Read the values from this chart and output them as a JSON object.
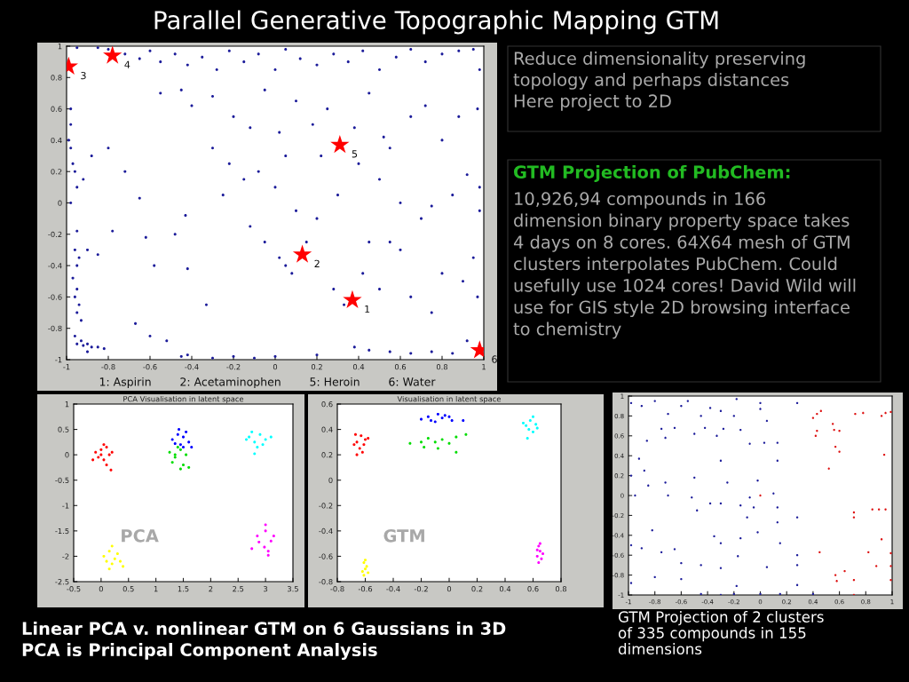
{
  "chart_data": [
    {
      "type": "other",
      "title": "Parallel Generative Topographic Mapping GTM",
      "annotations": [
        "Reduce dimensionality preserving\ntopology and perhaps distances\nHere project to 2D",
        "GTM Projection of PubChem:",
        "10,926,94 compounds in 166\ndimension binary property space takes\n4 days on 8 cores. 64X64 mesh of GTM\nclusters interpolates PubChem. Could\nusefully use 1024 cores! David Wild will\nuse for GIS style 2D browsing interface\nto chemistry",
        "Linear PCA v. nonlinear GTM on 6 Gaussians in 3D\nPCA is Principal Component Analysis",
        "GTM Projection of 2 clusters\nof 335 compounds in 155\ndimensions"
      ]
    },
    {
      "type": "scatter",
      "marker": "circle",
      "xlim": [
        -1,
        1
      ],
      "xticks": [
        -1,
        -0.8,
        -0.6,
        -0.4,
        -0.2,
        0,
        0.2,
        0.4,
        0.6,
        0.8,
        1
      ],
      "ylim": [
        -1,
        1
      ],
      "yticks": [
        -1,
        -0.8,
        -0.6,
        -0.4,
        -0.2,
        0,
        0.2,
        0.4,
        0.6,
        0.8,
        1
      ],
      "series": [
        {
          "color": "#1c1c9a",
          "x": [
            -0.95,
            -0.85,
            -0.8,
            -0.72,
            -0.65,
            -0.6,
            -0.55,
            -0.48,
            -0.42,
            -0.35,
            -0.28,
            -0.22,
            -0.15,
            -0.08,
            0.0,
            0.05,
            0.12,
            0.2,
            0.28,
            0.35,
            0.42,
            0.5,
            0.58,
            0.65,
            0.72,
            0.8,
            0.88,
            0.95,
            0.98,
            -0.55,
            -0.45,
            -0.4,
            -0.3,
            -0.2,
            -0.12,
            -0.05,
            0.02,
            0.1,
            0.18,
            0.25,
            0.38,
            0.45,
            0.52,
            0.65,
            0.72,
            0.8,
            0.88,
            0.97,
            -0.3,
            -0.22,
            -0.15,
            -0.25,
            -0.08,
            0.0,
            0.05,
            0.1,
            -0.12,
            -0.05,
            0.02,
            0.05,
            0.08,
            0.15,
            0.2,
            0.22,
            0.3,
            0.4,
            0.5,
            0.55,
            0.6,
            0.7,
            0.75,
            0.85,
            0.92,
            0.98,
            0.98,
            0.28,
            0.33,
            0.42,
            0.5,
            0.55,
            0.6,
            0.65,
            0.75,
            0.8,
            0.9,
            0.95,
            0.97,
            0.45,
            -0.6,
            -0.52,
            -0.45,
            -0.42,
            -0.3,
            -0.2,
            -0.1,
            0.0,
            0.2,
            0.38,
            0.45,
            0.55,
            0.65,
            0.75,
            0.85,
            0.92,
            -0.98,
            -0.98,
            -0.99,
            -0.98,
            -0.97,
            -0.96,
            -0.95,
            -0.98,
            -0.95,
            -0.96,
            -0.94,
            -0.95,
            -0.97,
            -0.95,
            -0.96,
            -0.94,
            -0.95,
            -0.93,
            -0.9,
            -0.92,
            -0.88,
            -0.95,
            -0.92,
            -0.9,
            -0.88,
            -0.93,
            -0.85,
            -0.82,
            -0.96,
            -0.9,
            -0.8,
            -0.72,
            -0.65,
            -0.78,
            -0.62,
            -0.85,
            -0.58,
            -0.43,
            -0.42,
            -0.48,
            -0.33,
            -0.67
          ],
          "values": [
            0.99,
            0.99,
            0.98,
            0.95,
            0.92,
            0.97,
            0.9,
            0.95,
            0.88,
            0.93,
            0.85,
            0.97,
            0.9,
            0.95,
            0.85,
            0.98,
            0.92,
            0.88,
            0.95,
            0.9,
            0.97,
            0.85,
            0.93,
            0.98,
            0.9,
            0.95,
            0.97,
            0.98,
            0.85,
            0.7,
            0.72,
            0.62,
            0.68,
            0.55,
            0.48,
            0.72,
            0.45,
            0.65,
            0.5,
            0.6,
            0.48,
            0.7,
            0.42,
            0.55,
            0.62,
            0.4,
            0.55,
            0.6,
            0.35,
            0.25,
            0.15,
            0.05,
            0.2,
            0.1,
            0.3,
            -0.05,
            -0.15,
            -0.25,
            -0.35,
            -0.4,
            -0.45,
            -0.25,
            -0.1,
            0.3,
            0.05,
            0.25,
            0.15,
            0.35,
            0.0,
            -0.1,
            -0.02,
            0.05,
            0.18,
            0.1,
            -0.05,
            -0.55,
            -0.65,
            -0.45,
            -0.55,
            -0.25,
            -0.3,
            -0.6,
            -0.7,
            -0.45,
            -0.5,
            -0.35,
            -0.6,
            -0.25,
            -0.85,
            -0.88,
            -0.98,
            -0.97,
            -0.99,
            -0.98,
            -0.99,
            -0.98,
            -0.97,
            -0.92,
            -0.94,
            -0.95,
            -0.96,
            -0.95,
            -0.96,
            -0.88,
            0.6,
            0.5,
            0.4,
            0.35,
            0.25,
            0.2,
            0.1,
            0.0,
            -0.18,
            -0.3,
            -0.35,
            -0.4,
            -0.48,
            -0.55,
            -0.6,
            -0.65,
            -0.7,
            -0.75,
            -0.3,
            0.15,
            0.3,
            -0.9,
            -0.91,
            -0.9,
            -0.92,
            -0.88,
            -0.92,
            -0.93,
            -0.85,
            -0.95,
            0.35,
            0.2,
            0.03,
            -0.18,
            -0.22,
            -0.33,
            -0.4,
            -0.08,
            -0.42,
            -0.2,
            -0.65,
            -0.77
          ]
        },
        {
          "color": "#ff0000",
          "marker": "star",
          "x": [
            0.37,
            0.13,
            -0.99,
            -0.78,
            0.31,
            0.98
          ],
          "values": [
            -0.62,
            -0.33,
            0.87,
            0.94,
            0.37,
            -0.94
          ]
        }
      ],
      "annotations": [
        "1",
        "2",
        "3",
        "4",
        "5",
        "6",
        "1: Aspirin        2: Acetaminophen        5: Heroin        6: Water"
      ]
    },
    {
      "type": "scatter",
      "marker": "circle",
      "title": "PCA Visualisation in latent space",
      "xlim": [
        -0.5,
        3.5
      ],
      "xticks": [
        -0.5,
        0,
        0.5,
        1,
        1.5,
        2,
        2.5,
        3,
        3.5
      ],
      "ylim": [
        -2.5,
        1
      ],
      "yticks": [
        -2.5,
        -2,
        -1.5,
        -1,
        -0.5,
        0,
        0.5,
        1
      ],
      "annotations": [
        "PCA"
      ],
      "series": [
        {
          "color": "#ff0000",
          "x": [
            -0.1,
            0,
            0.1,
            0.15,
            0.05,
            -0.05,
            0.2,
            0.0,
            0.1,
            -0.15,
            0.05,
            0.18
          ],
          "values": [
            0.05,
            0.1,
            0.15,
            0,
            -0.1,
            -0.05,
            0.05,
            0.0,
            -0.2,
            -0.1,
            0.2,
            -0.3
          ]
        },
        {
          "color": "#0000ff",
          "x": [
            1.3,
            1.4,
            1.5,
            1.6,
            1.45,
            1.35,
            1.55,
            1.42,
            1.5,
            1.65
          ],
          "values": [
            0.3,
            0.4,
            0.35,
            0.25,
            0.2,
            0.22,
            0.45,
            0.5,
            0.15,
            0.15
          ]
        },
        {
          "color": "#00dd00",
          "x": [
            1.25,
            1.35,
            1.45,
            1.55,
            1.4,
            1.3,
            1.5,
            1.6,
            1.35,
            1.45
          ],
          "values": [
            0.05,
            -0.05,
            0.1,
            0.0,
            0.15,
            -0.15,
            -0.2,
            -0.25,
            0.0,
            -0.28
          ]
        },
        {
          "color": "#00ffff",
          "x": [
            2.7,
            2.8,
            2.9,
            3.0,
            2.85,
            2.75,
            2.95,
            2.8,
            3.1,
            2.65
          ],
          "values": [
            0.35,
            0.25,
            0.4,
            0.3,
            0.15,
            0.45,
            0.2,
            0.02,
            0.35,
            0.3
          ]
        },
        {
          "color": "#ff00ff",
          "x": [
            2.85,
            3.0,
            3.1,
            2.98,
            3.05,
            2.88,
            3.15,
            2.75,
            3.0,
            3.05
          ],
          "values": [
            -1.6,
            -1.5,
            -1.7,
            -1.82,
            -1.9,
            -1.72,
            -1.6,
            -1.85,
            -1.38,
            -1.98
          ]
        },
        {
          "color": "#ffff00",
          "x": [
            0.05,
            0.15,
            0.25,
            0.3,
            0.2,
            0.1,
            0.35,
            0.2,
            0.4,
            0.15
          ],
          "values": [
            -2.0,
            -1.9,
            -2.05,
            -1.95,
            -2.15,
            -2.1,
            -2.1,
            -1.8,
            -2.2,
            -2.25
          ]
        }
      ]
    },
    {
      "type": "scatter",
      "marker": "circle",
      "title": "Visualisation in latent space",
      "xlim": [
        -0.8,
        0.8
      ],
      "xticks": [
        -0.8,
        -0.6,
        -0.4,
        -0.2,
        0,
        0.2,
        0.4,
        0.6,
        0.8
      ],
      "ylim": [
        -0.8,
        0.6
      ],
      "yticks": [
        -0.8,
        -0.6,
        -0.4,
        -0.2,
        0,
        0.2,
        0.4,
        0.6
      ],
      "annotations": [
        "GTM"
      ],
      "series": [
        {
          "color": "#ff0000",
          "x": [
            -0.66,
            -0.63,
            -0.6,
            -0.68,
            -0.64,
            -0.61,
            -0.67,
            -0.62,
            -0.58,
            -0.66
          ],
          "values": [
            0.3,
            0.35,
            0.32,
            0.28,
            0.25,
            0.28,
            0.36,
            0.22,
            0.33,
            0.2
          ]
        },
        {
          "color": "#0000ff",
          "x": [
            -0.2,
            -0.15,
            -0.1,
            -0.05,
            0.0,
            -0.08,
            0.02,
            -0.13,
            0.1,
            -0.03
          ],
          "values": [
            0.48,
            0.5,
            0.46,
            0.49,
            0.5,
            0.52,
            0.47,
            0.47,
            0.47,
            0.51
          ]
        },
        {
          "color": "#00dd00",
          "x": [
            -0.28,
            -0.2,
            -0.15,
            -0.1,
            -0.05,
            0.0,
            0.05,
            0.12,
            -0.08,
            0.05,
            -0.18
          ],
          "values": [
            0.29,
            0.3,
            0.33,
            0.3,
            0.32,
            0.29,
            0.34,
            0.36,
            0.25,
            0.22,
            0.26
          ]
        },
        {
          "color": "#00ffff",
          "x": [
            0.55,
            0.58,
            0.62,
            0.57,
            0.6,
            0.53,
            0.6,
            0.56,
            0.63
          ],
          "values": [
            0.43,
            0.47,
            0.44,
            0.4,
            0.38,
            0.45,
            0.5,
            0.33,
            0.41
          ]
        },
        {
          "color": "#ffff00",
          "x": [
            -0.61,
            -0.6,
            -0.59,
            -0.62,
            -0.6,
            -0.58,
            -0.61
          ],
          "values": [
            -0.65,
            -0.7,
            -0.68,
            -0.72,
            -0.63,
            -0.73,
            -0.75
          ]
        },
        {
          "color": "#ff00ff",
          "x": [
            0.64,
            0.65,
            0.63,
            0.66,
            0.64,
            0.65,
            0.67,
            0.63
          ],
          "values": [
            -0.52,
            -0.56,
            -0.6,
            -0.62,
            -0.65,
            -0.5,
            -0.58,
            -0.55
          ]
        }
      ]
    },
    {
      "type": "scatter",
      "marker": "circle",
      "xlim": [
        -1,
        1
      ],
      "xticks": [
        -1,
        -0.8,
        -0.6,
        -0.4,
        -0.2,
        0,
        0.2,
        0.4,
        0.6,
        0.8,
        1
      ],
      "ylim": [
        -1,
        1
      ],
      "yticks": [
        -1,
        -0.8,
        -0.6,
        -0.4,
        -0.2,
        0,
        0.2,
        0.4,
        0.6,
        0.8,
        1
      ],
      "series": [
        {
          "color": "#1c1c9a",
          "x": [
            -0.98,
            -0.9,
            -0.8,
            -0.7,
            -0.6,
            -0.55,
            -0.45,
            -0.38,
            -0.3,
            -0.2,
            -0.18,
            0.0,
            0.0,
            0.05,
            0.28,
            -0.75,
            -0.65,
            -0.5,
            -0.42,
            -0.33,
            -0.28,
            -0.15,
            -0.86,
            -0.72,
            -0.08,
            0.03,
            0.13,
            -0.3,
            0.13,
            -0.92,
            -0.88,
            -0.98,
            -0.95,
            -0.85,
            -0.72,
            -0.7,
            -0.5,
            -0.52,
            -0.48,
            -0.38,
            -0.3,
            -0.25,
            -0.15,
            -0.08,
            -0.05,
            -0.02,
            0.1,
            0.13,
            -0.1,
            0.13,
            0.28,
            -0.98,
            -0.9,
            -0.82,
            -0.75,
            -0.6,
            -0.45,
            -0.35,
            -0.3,
            -0.17,
            -0.15,
            -0.02,
            0.15,
            0.28,
            0.28,
            0.05,
            -0.65,
            -0.8,
            -0.6,
            -0.3,
            -0.98,
            -0.18,
            0.28,
            -0.45,
            -0.3,
            -0.2,
            0.0,
            0.15,
            0.4
          ],
          "values": [
            0.93,
            0.9,
            0.95,
            0.82,
            0.9,
            0.95,
            0.8,
            0.88,
            0.85,
            0.8,
            0.97,
            0.93,
            0.87,
            0.75,
            0.93,
            0.67,
            0.68,
            0.62,
            0.68,
            0.6,
            0.67,
            0.66,
            0.55,
            0.58,
            0.52,
            0.53,
            0.53,
            0.35,
            0.35,
            0.37,
            0.25,
            0.2,
            0.0,
            0.1,
            0.13,
            0.0,
            0.18,
            -0.02,
            -0.15,
            -0.08,
            -0.08,
            0.13,
            -0.1,
            -0.02,
            -0.12,
            0.15,
            0.02,
            -0.12,
            -0.22,
            -0.27,
            -0.22,
            -0.5,
            -0.53,
            -0.35,
            -0.57,
            -0.68,
            -0.7,
            -0.41,
            -0.48,
            -0.61,
            -0.43,
            -0.37,
            -0.48,
            -0.6,
            -0.7,
            -0.72,
            -0.54,
            -0.82,
            -0.84,
            -0.73,
            -0.88,
            -0.91,
            -0.9,
            -0.99,
            -1.0,
            -0.99,
            -0.99,
            -0.99,
            -0.99
          ]
        },
        {
          "color": "#dd1111",
          "x": [
            0.4,
            0.43,
            0.46,
            0.42,
            0.43,
            0.55,
            0.56,
            0.6,
            0.57,
            0.6,
            0.72,
            0.78,
            0.92,
            0.95,
            0.99,
            0.94,
            0.52,
            0.71,
            0.71,
            0.85,
            0.9,
            0.95,
            0.92,
            0.99,
            0.82,
            0.45,
            0.88,
            0.99,
            0.64,
            0.57,
            0.58,
            0.71,
            0.99,
            0.71,
            0.0
          ],
          "values": [
            0.78,
            0.82,
            0.85,
            0.6,
            0.65,
            0.72,
            0.66,
            0.65,
            0.49,
            0.44,
            0.82,
            0.83,
            0.8,
            0.83,
            0.84,
            0.41,
            0.27,
            -0.17,
            -0.22,
            -0.14,
            -0.14,
            -0.14,
            -0.44,
            -0.58,
            -0.57,
            -0.57,
            -0.71,
            -0.71,
            -0.76,
            -0.8,
            -0.86,
            -0.85,
            -0.85,
            -1.0,
            0.0
          ]
        }
      ]
    }
  ]
}
